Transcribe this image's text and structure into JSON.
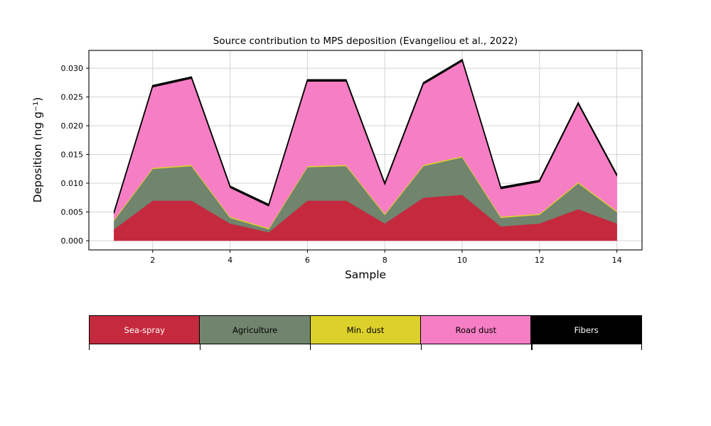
{
  "chart_data": {
    "type": "area",
    "stacked": true,
    "title": "Source contribution to MPS deposition (Evangeliou et al., 2022)",
    "xlabel": "Sample",
    "ylabel": "Deposition (ng g⁻¹)",
    "x": [
      1,
      2,
      3,
      4,
      5,
      6,
      7,
      8,
      9,
      10,
      11,
      12,
      13,
      14
    ],
    "xticks": [
      2,
      4,
      6,
      8,
      10,
      12,
      14
    ],
    "yticks": [
      0.0,
      0.005,
      0.01,
      0.015,
      0.02,
      0.025,
      0.03
    ],
    "xlim": [
      0.35,
      14.65
    ],
    "ylim": [
      -0.0016,
      0.0331
    ],
    "grid": true,
    "legend_position": "bottom",
    "outline_color": "#000000",
    "grid_color": "#d3d3d3",
    "series": [
      {
        "name": "Sea-spray",
        "color": "#c5293d",
        "values": [
          0.002,
          0.007,
          0.007,
          0.003,
          0.0015,
          0.007,
          0.007,
          0.003,
          0.0075,
          0.008,
          0.0025,
          0.003,
          0.0055,
          0.003
        ]
      },
      {
        "name": "Agriculture",
        "color": "#70846e",
        "values": [
          0.0015,
          0.0055,
          0.006,
          0.001,
          0.0005,
          0.0058,
          0.006,
          0.0015,
          0.0055,
          0.0065,
          0.0015,
          0.0015,
          0.0045,
          0.002
        ]
      },
      {
        "name": "Min. dust",
        "color": "#dcd02b",
        "values": [
          0.0002,
          0.0002,
          0.0002,
          0.0002,
          0.0002,
          0.0002,
          0.0002,
          0.0002,
          0.0002,
          0.0002,
          0.0002,
          0.0002,
          0.0002,
          0.0002
        ]
      },
      {
        "name": "Road dust",
        "color": "#f67ec4",
        "values": [
          0.001,
          0.014,
          0.015,
          0.005,
          0.0038,
          0.0147,
          0.0145,
          0.005,
          0.014,
          0.0165,
          0.0048,
          0.0055,
          0.0135,
          0.006
        ]
      },
      {
        "name": "Fibers",
        "color": "#000000",
        "values": [
          0.0003,
          0.0003,
          0.0003,
          0.0003,
          0.0003,
          0.0003,
          0.0003,
          0.0003,
          0.0003,
          0.0003,
          0.0003,
          0.0003,
          0.0003,
          0.0003
        ]
      }
    ],
    "totals": [
      0.005,
      0.027,
      0.0285,
      0.0095,
      0.0063,
      0.028,
      0.028,
      0.01,
      0.0275,
      0.0315,
      0.0093,
      0.0105,
      0.024,
      0.0115
    ]
  }
}
